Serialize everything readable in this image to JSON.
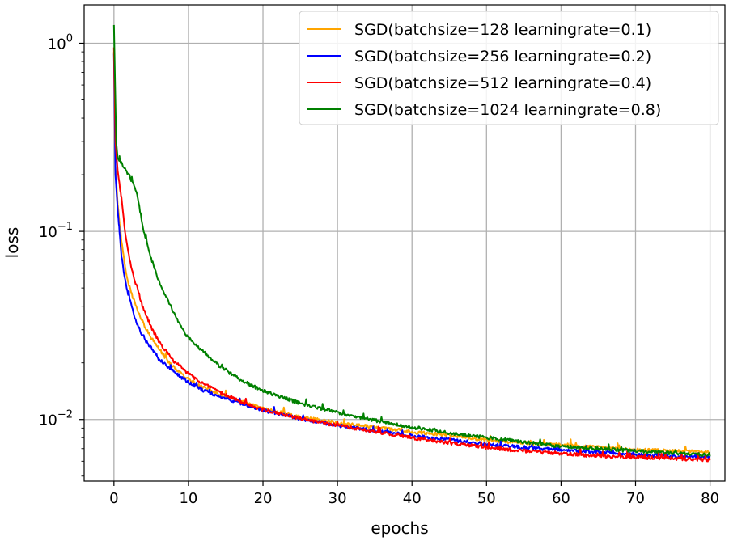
{
  "chart_data": {
    "type": "line",
    "xlabel": "epochs",
    "ylabel": "loss",
    "yscale": "log",
    "xlim": [
      -4,
      82
    ],
    "ylim": [
      0.0047,
      1.6
    ],
    "xticks": [
      0,
      10,
      20,
      30,
      40,
      50,
      60,
      70,
      80
    ],
    "xtick_labels": [
      "0",
      "10",
      "20",
      "30",
      "40",
      "50",
      "60",
      "70",
      "80"
    ],
    "yticks": [
      {
        "value": 1,
        "base": "10",
        "exp": "0"
      },
      {
        "value": 0.1,
        "base": "10",
        "exp": "−1"
      },
      {
        "value": 0.01,
        "base": "10",
        "exp": "−2"
      }
    ],
    "grid": true,
    "legend_position": "top-right",
    "series": [
      {
        "name": "SGD(batchsize=128 learningrate=0.1)",
        "color": "#FFA500",
        "points": [
          [
            0,
            0.9
          ],
          [
            0.2,
            0.22
          ],
          [
            0.5,
            0.14
          ],
          [
            1,
            0.09
          ],
          [
            1.5,
            0.065
          ],
          [
            2,
            0.052
          ],
          [
            2.5,
            0.045
          ],
          [
            3,
            0.04
          ],
          [
            4,
            0.032
          ],
          [
            5,
            0.027
          ],
          [
            6,
            0.024
          ],
          [
            7,
            0.021
          ],
          [
            8,
            0.019
          ],
          [
            9,
            0.0175
          ],
          [
            10,
            0.0163
          ],
          [
            12,
            0.0148
          ],
          [
            14,
            0.0137
          ],
          [
            16,
            0.0128
          ],
          [
            18,
            0.0121
          ],
          [
            20,
            0.0114
          ],
          [
            25,
            0.0103
          ],
          [
            30,
            0.0096
          ],
          [
            35,
            0.0091
          ],
          [
            40,
            0.0086
          ],
          [
            45,
            0.0082
          ],
          [
            50,
            0.0078
          ],
          [
            55,
            0.0075
          ],
          [
            60,
            0.0073
          ],
          [
            65,
            0.0071
          ],
          [
            70,
            0.0069
          ],
          [
            75,
            0.0068
          ],
          [
            80,
            0.0067
          ]
        ]
      },
      {
        "name": "SGD(batchsize=256 learningrate=0.2)",
        "color": "#0000FF",
        "points": [
          [
            0,
            0.88
          ],
          [
            0.2,
            0.2
          ],
          [
            0.5,
            0.13
          ],
          [
            1,
            0.075
          ],
          [
            1.5,
            0.055
          ],
          [
            2,
            0.045
          ],
          [
            2.5,
            0.038
          ],
          [
            3,
            0.033
          ],
          [
            4,
            0.027
          ],
          [
            5,
            0.024
          ],
          [
            6,
            0.021
          ],
          [
            7,
            0.0195
          ],
          [
            8,
            0.018
          ],
          [
            9,
            0.0168
          ],
          [
            10,
            0.0158
          ],
          [
            12,
            0.0143
          ],
          [
            14,
            0.0133
          ],
          [
            16,
            0.0125
          ],
          [
            18,
            0.0118
          ],
          [
            20,
            0.0112
          ],
          [
            25,
            0.0101
          ],
          [
            30,
            0.0093
          ],
          [
            35,
            0.0087
          ],
          [
            40,
            0.0082
          ],
          [
            45,
            0.0078
          ],
          [
            50,
            0.0074
          ],
          [
            55,
            0.0071
          ],
          [
            60,
            0.0069
          ],
          [
            65,
            0.0067
          ],
          [
            70,
            0.0065
          ],
          [
            75,
            0.0064
          ],
          [
            80,
            0.0063
          ]
        ]
      },
      {
        "name": "SGD(batchsize=512 learningrate=0.4)",
        "color": "#FF0000",
        "points": [
          [
            0,
            0.95
          ],
          [
            0.2,
            0.3
          ],
          [
            0.5,
            0.21
          ],
          [
            1,
            0.15
          ],
          [
            1.5,
            0.1
          ],
          [
            2,
            0.075
          ],
          [
            2.5,
            0.06
          ],
          [
            3,
            0.052
          ],
          [
            4,
            0.038
          ],
          [
            5,
            0.031
          ],
          [
            6,
            0.026
          ],
          [
            7,
            0.023
          ],
          [
            8,
            0.0205
          ],
          [
            9,
            0.019
          ],
          [
            10,
            0.0175
          ],
          [
            12,
            0.0155
          ],
          [
            14,
            0.014
          ],
          [
            16,
            0.013
          ],
          [
            18,
            0.012
          ],
          [
            20,
            0.0113
          ],
          [
            25,
            0.0101
          ],
          [
            30,
            0.0093
          ],
          [
            35,
            0.0086
          ],
          [
            40,
            0.008
          ],
          [
            45,
            0.0075
          ],
          [
            50,
            0.0071
          ],
          [
            55,
            0.0068
          ],
          [
            60,
            0.0066
          ],
          [
            65,
            0.0064
          ],
          [
            70,
            0.0063
          ],
          [
            75,
            0.0062
          ],
          [
            80,
            0.0061
          ]
        ]
      },
      {
        "name": "SGD(batchsize=1024 learningrate=0.8)",
        "color": "#008000",
        "points": [
          [
            0,
            1.25
          ],
          [
            0.15,
            0.6
          ],
          [
            0.3,
            0.3
          ],
          [
            0.5,
            0.245
          ],
          [
            1,
            0.23
          ],
          [
            2,
            0.2
          ],
          [
            3,
            0.165
          ],
          [
            4,
            0.1
          ],
          [
            5,
            0.072
          ],
          [
            6,
            0.055
          ],
          [
            7,
            0.045
          ],
          [
            8,
            0.037
          ],
          [
            9,
            0.031
          ],
          [
            10,
            0.027
          ],
          [
            12,
            0.023
          ],
          [
            14,
            0.0195
          ],
          [
            16,
            0.0172
          ],
          [
            18,
            0.0155
          ],
          [
            20,
            0.0142
          ],
          [
            25,
            0.0122
          ],
          [
            30,
            0.0109
          ],
          [
            35,
            0.0099
          ],
          [
            40,
            0.0091
          ],
          [
            45,
            0.0085
          ],
          [
            50,
            0.008
          ],
          [
            55,
            0.0076
          ],
          [
            60,
            0.0072
          ],
          [
            65,
            0.007
          ],
          [
            70,
            0.0068
          ],
          [
            75,
            0.0066
          ],
          [
            80,
            0.0065
          ]
        ]
      }
    ]
  }
}
